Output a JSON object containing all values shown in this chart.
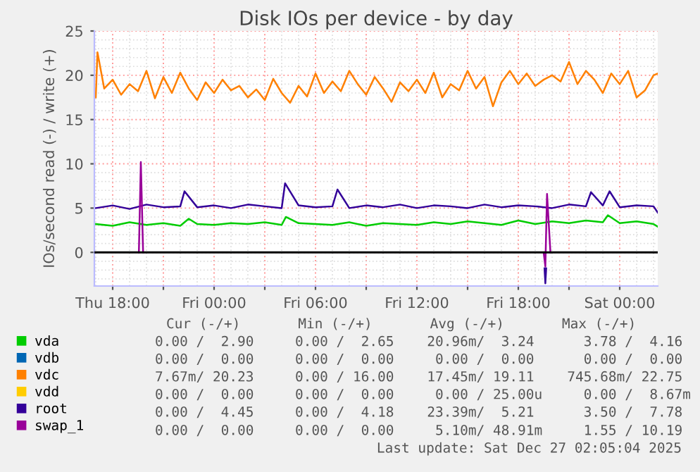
{
  "chart_data": {
    "type": "line",
    "title": "Disk IOs per device - by day",
    "ylabel": "IOs/second read (-) / write (+)",
    "xlim": [
      "2025-12-25T16:55",
      "2025-12-27T02:15"
    ],
    "ylim": [
      -3.8,
      25
    ],
    "xticks": [
      {
        "value": "2025-12-25T18:00",
        "label": "Thu 18:00"
      },
      {
        "value": "2025-12-25T21:00",
        "label": null
      },
      {
        "value": "2025-12-26T00:00",
        "label": "Fri 00:00"
      },
      {
        "value": "2025-12-26T03:00",
        "label": null
      },
      {
        "value": "2025-12-26T06:00",
        "label": "Fri 06:00"
      },
      {
        "value": "2025-12-26T09:00",
        "label": null
      },
      {
        "value": "2025-12-26T12:00",
        "label": "Fri 12:00"
      },
      {
        "value": "2025-12-26T15:00",
        "label": null
      },
      {
        "value": "2025-12-26T18:00",
        "label": "Fri 18:00"
      },
      {
        "value": "2025-12-26T21:00",
        "label": null
      },
      {
        "value": "2025-12-27T00:00",
        "label": "Sat 00:00"
      }
    ],
    "yticks": [
      0,
      5,
      10,
      15,
      20,
      25
    ],
    "grid": true,
    "legend": "bottom",
    "ref_lines": [
      {
        "axis": "y",
        "value": 0,
        "color": "#000000"
      }
    ],
    "series": [
      {
        "name": "vda",
        "color": "#00cc00",
        "x": [
          "2025-12-25T17:00",
          "2025-12-25T18:00",
          "2025-12-25T19:00",
          "2025-12-25T20:00",
          "2025-12-25T21:00",
          "2025-12-25T22:00",
          "2025-12-25T22:30",
          "2025-12-25T23:00",
          "2025-12-26T00:00",
          "2025-12-26T01:00",
          "2025-12-26T02:00",
          "2025-12-26T03:00",
          "2025-12-26T04:00",
          "2025-12-26T04:15",
          "2025-12-26T05:00",
          "2025-12-26T06:00",
          "2025-12-26T07:00",
          "2025-12-26T08:00",
          "2025-12-26T09:00",
          "2025-12-26T10:00",
          "2025-12-26T11:00",
          "2025-12-26T12:00",
          "2025-12-26T13:00",
          "2025-12-26T14:00",
          "2025-12-26T15:00",
          "2025-12-26T16:00",
          "2025-12-26T17:00",
          "2025-12-26T18:00",
          "2025-12-26T19:00",
          "2025-12-26T20:00",
          "2025-12-26T21:00",
          "2025-12-26T22:00",
          "2025-12-26T23:00",
          "2025-12-26T23:18",
          "2025-12-27T00:00",
          "2025-12-27T01:00",
          "2025-12-27T02:00",
          "2025-12-27T02:15"
        ],
        "values": [
          3.2,
          3.0,
          3.4,
          3.1,
          3.3,
          3.0,
          3.8,
          3.2,
          3.1,
          3.3,
          3.2,
          3.4,
          3.1,
          4.0,
          3.3,
          3.2,
          3.1,
          3.4,
          3.0,
          3.3,
          3.2,
          3.1,
          3.4,
          3.2,
          3.5,
          3.3,
          3.1,
          3.6,
          3.2,
          3.5,
          3.3,
          3.6,
          3.4,
          4.2,
          3.3,
          3.5,
          3.2,
          2.9
        ]
      },
      {
        "name": "vdb",
        "color": "#0066b3"
      },
      {
        "name": "vdc",
        "color": "#ff8000",
        "x": [
          "2025-12-25T17:00",
          "2025-12-25T17:06",
          "2025-12-25T17:30",
          "2025-12-25T18:00",
          "2025-12-25T18:30",
          "2025-12-25T19:00",
          "2025-12-25T19:30",
          "2025-12-25T20:00",
          "2025-12-25T20:30",
          "2025-12-25T21:00",
          "2025-12-25T21:30",
          "2025-12-25T22:00",
          "2025-12-25T22:30",
          "2025-12-25T23:00",
          "2025-12-25T23:30",
          "2025-12-26T00:00",
          "2025-12-26T00:30",
          "2025-12-26T01:00",
          "2025-12-26T01:30",
          "2025-12-26T02:00",
          "2025-12-26T02:30",
          "2025-12-26T03:00",
          "2025-12-26T03:30",
          "2025-12-26T04:00",
          "2025-12-26T04:30",
          "2025-12-26T05:00",
          "2025-12-26T05:30",
          "2025-12-26T06:00",
          "2025-12-26T06:30",
          "2025-12-26T07:00",
          "2025-12-26T07:30",
          "2025-12-26T08:00",
          "2025-12-26T08:30",
          "2025-12-26T09:00",
          "2025-12-26T09:30",
          "2025-12-26T10:00",
          "2025-12-26T10:30",
          "2025-12-26T11:00",
          "2025-12-26T11:30",
          "2025-12-26T12:00",
          "2025-12-26T12:30",
          "2025-12-26T13:00",
          "2025-12-26T13:30",
          "2025-12-26T14:00",
          "2025-12-26T14:30",
          "2025-12-26T15:00",
          "2025-12-26T15:30",
          "2025-12-26T16:00",
          "2025-12-26T16:30",
          "2025-12-26T17:00",
          "2025-12-26T17:30",
          "2025-12-26T18:00",
          "2025-12-26T18:30",
          "2025-12-26T19:00",
          "2025-12-26T19:30",
          "2025-12-26T20:00",
          "2025-12-26T20:30",
          "2025-12-26T21:00",
          "2025-12-26T21:30",
          "2025-12-26T22:00",
          "2025-12-26T22:30",
          "2025-12-26T23:00",
          "2025-12-26T23:30",
          "2025-12-27T00:00",
          "2025-12-27T00:30",
          "2025-12-27T01:00",
          "2025-12-27T01:30",
          "2025-12-27T02:00",
          "2025-12-27T02:15"
        ],
        "values": [
          17.5,
          22.6,
          18.5,
          19.5,
          17.8,
          19.0,
          18.2,
          20.5,
          17.4,
          19.8,
          18.0,
          20.3,
          18.5,
          17.2,
          19.2,
          18.0,
          19.5,
          18.3,
          18.8,
          17.5,
          18.4,
          17.2,
          19.6,
          18.0,
          16.9,
          18.8,
          17.6,
          20.2,
          18.0,
          19.3,
          18.2,
          20.5,
          19.0,
          17.8,
          19.8,
          18.5,
          17.0,
          19.2,
          18.2,
          19.5,
          18.0,
          20.3,
          17.5,
          19.0,
          18.3,
          20.5,
          18.5,
          19.8,
          16.5,
          19.2,
          20.5,
          19.0,
          20.2,
          18.8,
          19.5,
          20.0,
          19.3,
          21.5,
          19.0,
          20.5,
          19.5,
          18.0,
          20.2,
          19.0,
          20.5,
          17.5,
          18.3,
          20.0,
          20.2
        ]
      },
      {
        "name": "vdd",
        "color": "#ffcc00"
      },
      {
        "name": "root",
        "color": "#330099",
        "x": [
          "2025-12-25T17:00",
          "2025-12-25T18:00",
          "2025-12-25T19:00",
          "2025-12-25T20:00",
          "2025-12-25T21:00",
          "2025-12-25T22:00",
          "2025-12-25T22:15",
          "2025-12-25T23:00",
          "2025-12-26T00:00",
          "2025-12-26T01:00",
          "2025-12-26T02:00",
          "2025-12-26T03:00",
          "2025-12-26T04:00",
          "2025-12-26T04:12",
          "2025-12-26T05:00",
          "2025-12-26T06:00",
          "2025-12-26T07:00",
          "2025-12-26T07:18",
          "2025-12-26T08:00",
          "2025-12-26T09:00",
          "2025-12-26T10:00",
          "2025-12-26T11:00",
          "2025-12-26T12:00",
          "2025-12-26T13:00",
          "2025-12-26T14:00",
          "2025-12-26T15:00",
          "2025-12-26T16:00",
          "2025-12-26T17:00",
          "2025-12-26T18:00",
          "2025-12-26T19:00",
          "2025-12-26T20:00",
          "2025-12-26T21:00",
          "2025-12-26T22:00",
          "2025-12-26T22:18",
          "2025-12-26T23:00",
          "2025-12-26T23:24",
          "2025-12-27T00:00",
          "2025-12-27T01:00",
          "2025-12-27T02:00",
          "2025-12-27T02:15"
        ],
        "values": [
          5.0,
          5.3,
          4.9,
          5.4,
          5.1,
          5.2,
          6.9,
          5.1,
          5.3,
          5.0,
          5.4,
          5.2,
          5.0,
          7.8,
          5.3,
          5.1,
          5.2,
          7.1,
          5.0,
          5.3,
          5.1,
          5.4,
          5.0,
          5.3,
          5.2,
          5.0,
          5.4,
          5.1,
          5.3,
          5.2,
          5.0,
          5.4,
          5.2,
          6.8,
          5.3,
          6.9,
          5.1,
          5.3,
          5.2,
          4.5
        ]
      },
      {
        "name": "swap_1",
        "color": "#990099",
        "x": [
          "2025-12-25T19:33",
          "2025-12-25T19:40",
          "2025-12-25T19:48",
          "2025-12-26T12:00",
          "2025-12-26T19:30",
          "2025-12-26T19:36",
          "2025-12-26T19:42",
          "2025-12-26T19:54"
        ],
        "values": [
          0,
          10.2,
          0,
          null,
          0,
          -1.6,
          6.6,
          0
        ]
      },
      {
        "color": "#330099",
        "x": [
          "2025-12-26T19:33",
          "2025-12-26T19:36",
          "2025-12-26T19:39"
        ],
        "values": [
          -1.8,
          -3.5,
          -1.8
        ]
      }
    ],
    "annotations": [
      "Cur (-/+)       Min (-/+)       Avg (-/+)       Max (-/+)",
      "0.00 /  2.90     0.00 /  2.65    20.96m/  3.24      3.78 /  4.16",
      "0.00 /  0.00     0.00 /  0.00     0.00 /  0.00      0.00 /  0.00",
      "7.67m/ 20.23     0.00 / 16.00    17.45m/ 19.11    745.68m/ 22.75",
      "0.00 /  0.00     0.00 /  0.00     0.00 / 25.00u     0.00 /  8.67m",
      "0.00 /  4.45     0.00 /  4.18    23.39m/  5.21      3.50 /  7.78",
      "0.00 /  0.00     0.00 /  0.00     5.10m/ 48.91m     1.55 / 10.19",
      "Last update: Sat Dec 27 02:05:04 2025"
    ]
  }
}
